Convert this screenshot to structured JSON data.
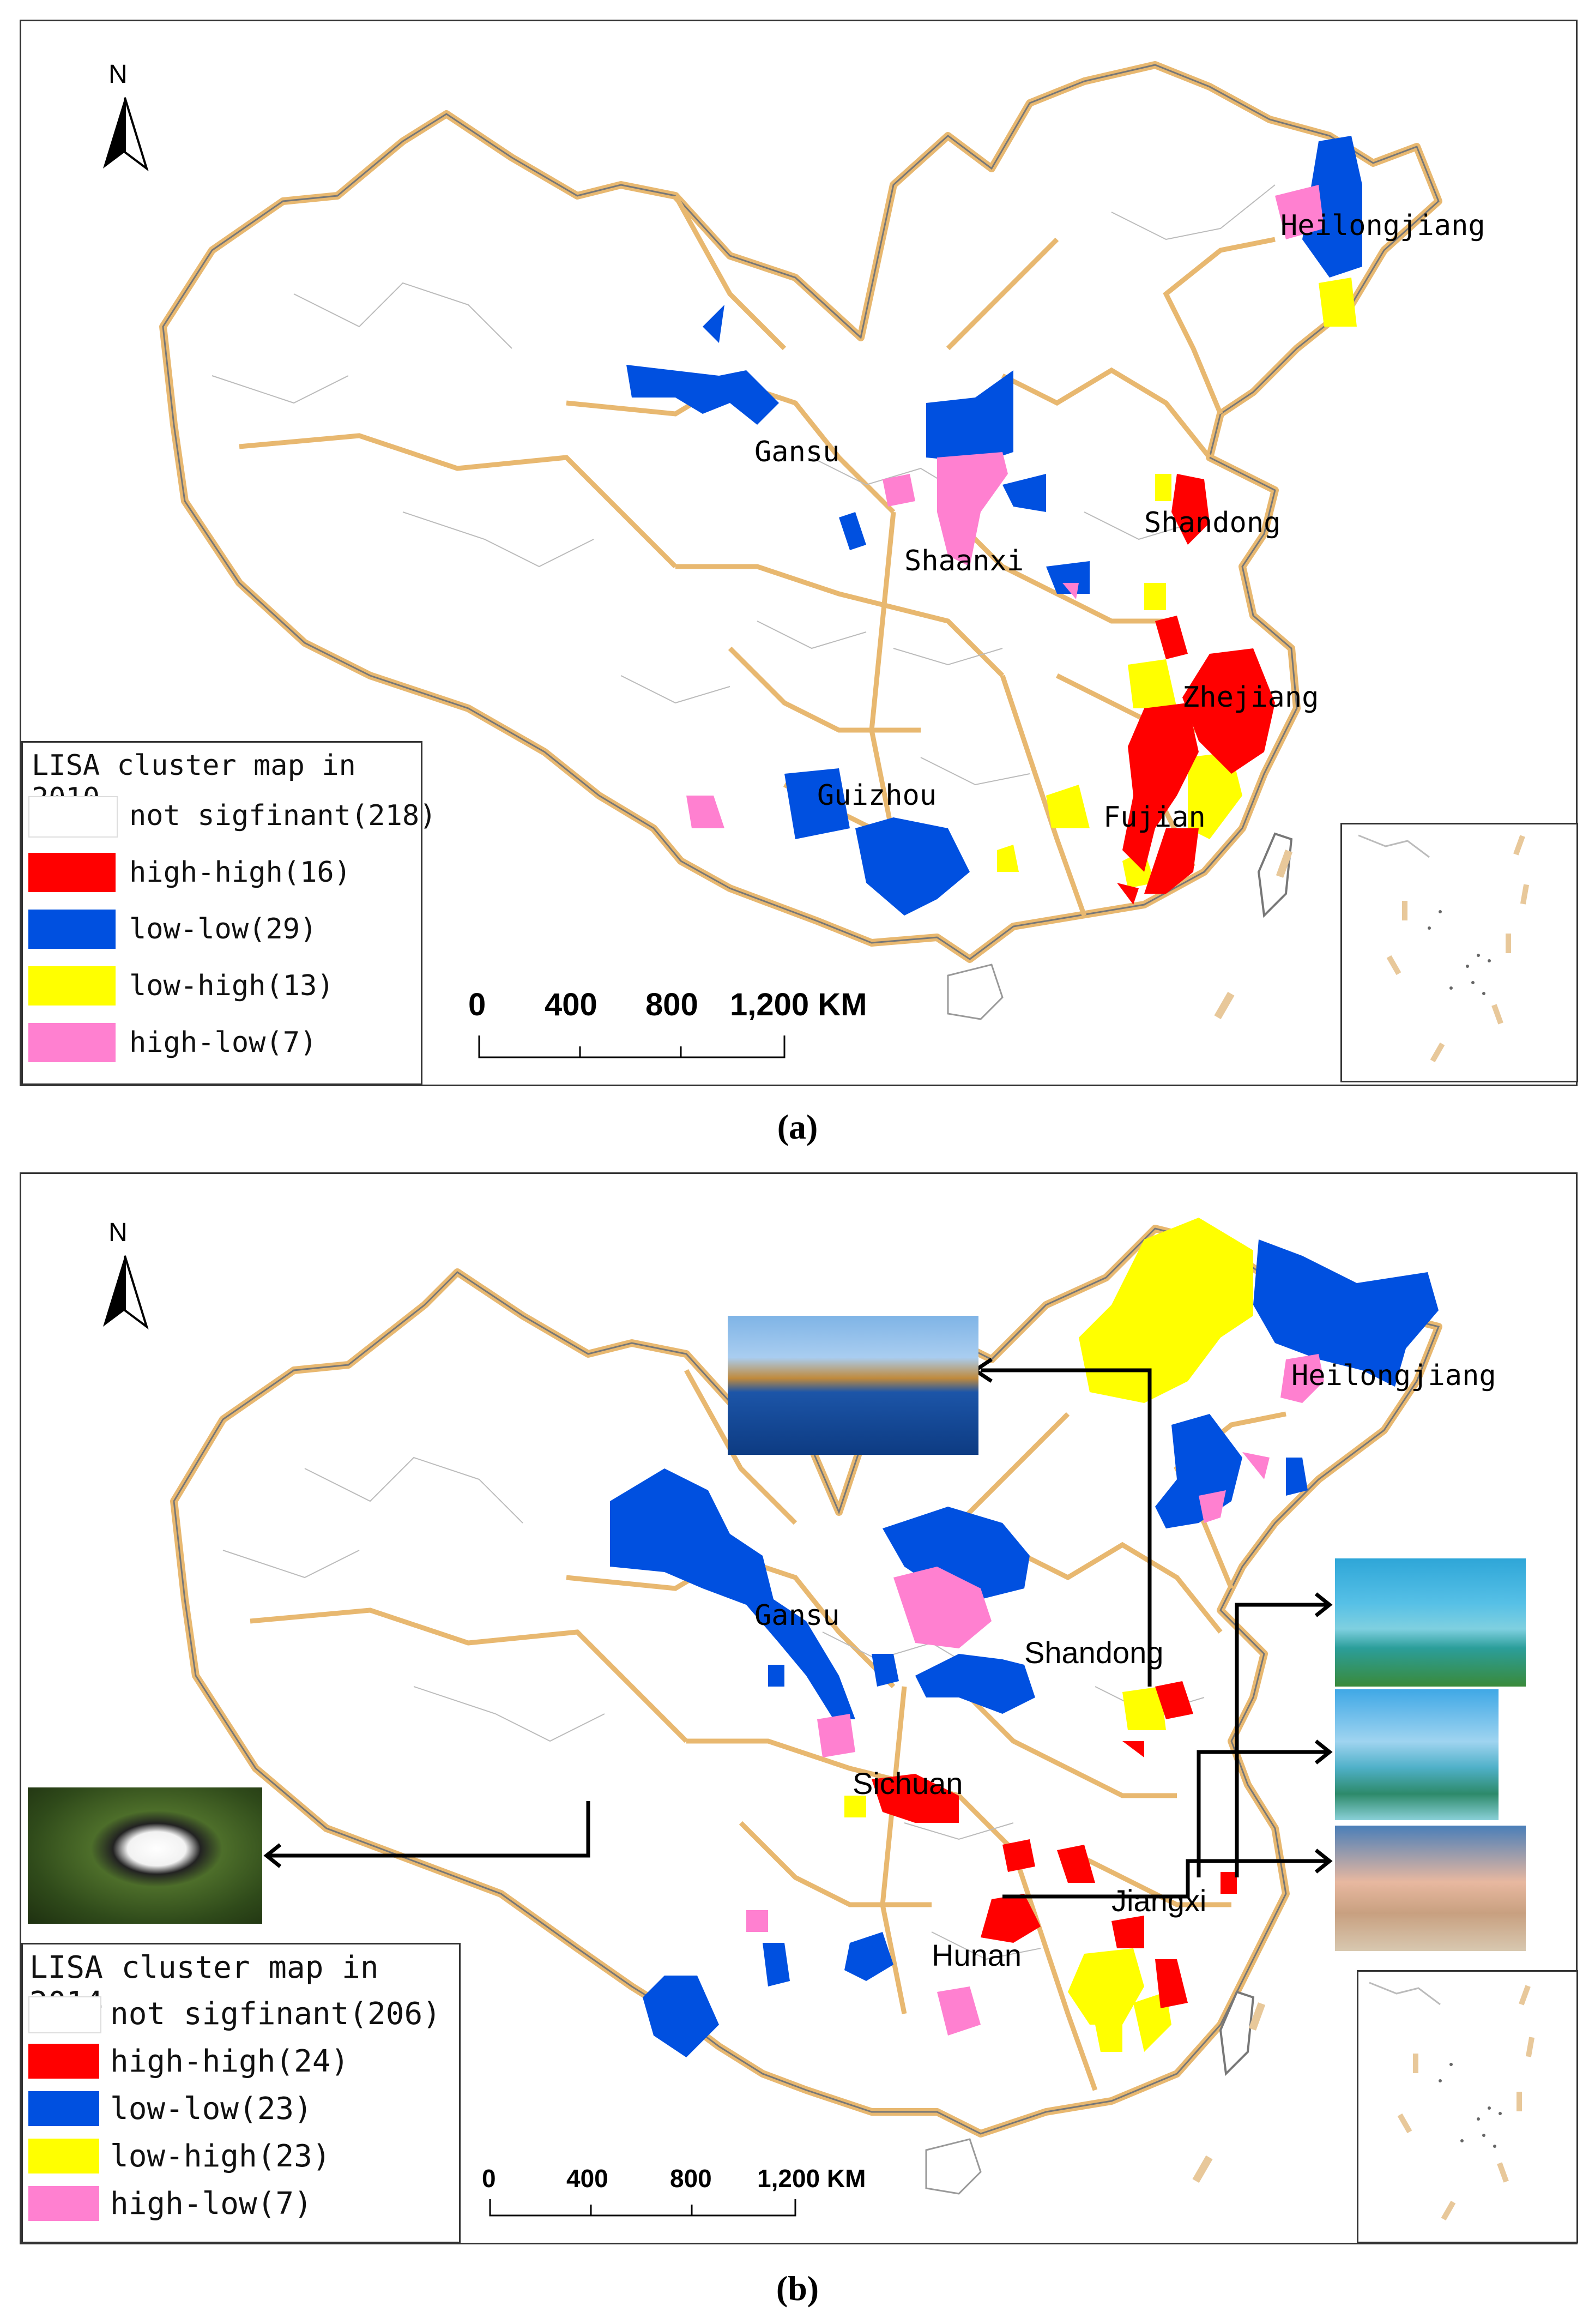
{
  "colors": {
    "high_high": "#ff0000",
    "low_low": "#0050e0",
    "low_high": "#ffff00",
    "high_low": "#ff80d0",
    "not_significant": "#ffffff",
    "province_border": "#e8b870",
    "county_border": "#b0b0b0"
  },
  "panel_a": {
    "legend_title": "LISA cluster map in 2010",
    "legend": [
      {
        "label": "not sigfinant(218)",
        "class": "not_significant"
      },
      {
        "label": "high-high(16)",
        "class": "high_high"
      },
      {
        "label": "low-low(29)",
        "class": "low_low"
      },
      {
        "label": "low-high(13)",
        "class": "low_high"
      },
      {
        "label": "high-low(7)",
        "class": "high_low"
      }
    ],
    "province_labels": [
      "Heilongjiang",
      "Gansu",
      "Shandong",
      "Shaanxi",
      "Zhejiang",
      "Guizhou",
      "Fujian"
    ],
    "scale": [
      "0",
      "400",
      "800",
      "1,200 KM"
    ],
    "north": "N",
    "caption": "(a)"
  },
  "panel_b": {
    "legend_title": "LISA cluster map in 2014",
    "legend": [
      {
        "label": "not sigfinant(206)",
        "class": "not_significant"
      },
      {
        "label": "high-high(24)",
        "class": "high_high"
      },
      {
        "label": "low-low(23)",
        "class": "low_low"
      },
      {
        "label": "low-high(23)",
        "class": "low_high"
      },
      {
        "label": "high-low(7)",
        "class": "high_low"
      }
    ],
    "province_labels": [
      "Heilongjiang",
      "Gansu",
      "Shandong",
      "Sichuan",
      "Jiangxi",
      "Hunan"
    ],
    "scale": [
      "0",
      "400",
      "800",
      "1,200 KM"
    ],
    "north": "N",
    "caption": "(b)",
    "photos": [
      "wetland-photo",
      "lake-islands-photo",
      "coastal-wetland-photo",
      "beach-photo",
      "panda-photo"
    ]
  }
}
